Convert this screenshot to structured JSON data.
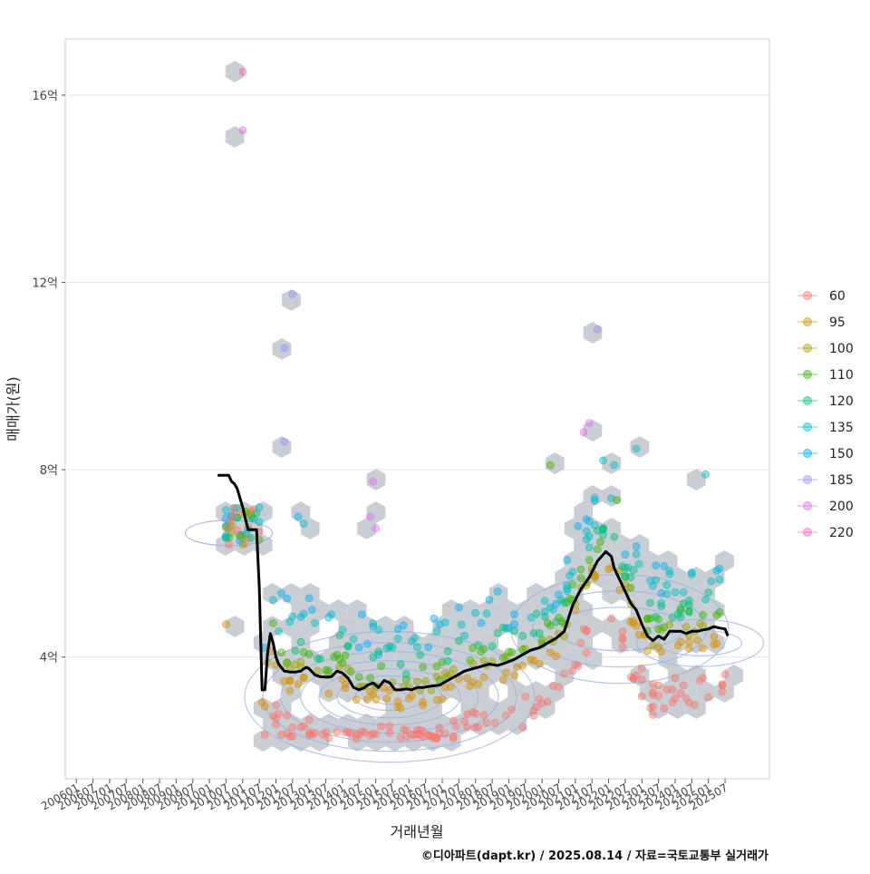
{
  "credit": "©디아파트(dapt.kr) / 2025.08.14 / 자료=국토교통부 실거래가",
  "chart_data": {
    "type": "scatter",
    "title": "",
    "xlabel": "거래년월",
    "ylabel": "매매가(원)",
    "ylim": [
      1.4,
      17.2
    ],
    "xlim": [
      "2005-09",
      "2026-11"
    ],
    "grid": "horizontal",
    "legend_position": "right",
    "yticks": [
      {
        "value": 4,
        "label": "4억"
      },
      {
        "value": 8,
        "label": "8억"
      },
      {
        "value": 12,
        "label": "12억"
      },
      {
        "value": 16,
        "label": "16억"
      }
    ],
    "xtick_labels": [
      "200601",
      "200607",
      "200701",
      "200707",
      "200801",
      "200807",
      "200901",
      "200907",
      "201001",
      "201007",
      "201101",
      "201107",
      "201201",
      "201207",
      "201301",
      "201307",
      "201401",
      "201407",
      "201501",
      "201507",
      "201601",
      "201607",
      "201701",
      "201707",
      "201801",
      "201807",
      "201901",
      "201907",
      "202001",
      "202007",
      "202101",
      "202107",
      "202201",
      "202207",
      "202301",
      "202307",
      "202401",
      "202407",
      "202501",
      "202507"
    ],
    "legend": [
      {
        "label": "60",
        "color": "#F8766D"
      },
      {
        "label": "95",
        "color": "#D89000"
      },
      {
        "label": "100",
        "color": "#A3A500"
      },
      {
        "label": "110",
        "color": "#39B600"
      },
      {
        "label": "120",
        "color": "#00BF7D"
      },
      {
        "label": "135",
        "color": "#00BFC4"
      },
      {
        "label": "150",
        "color": "#00B0F6"
      },
      {
        "label": "185",
        "color": "#9590FF"
      },
      {
        "label": "200",
        "color": "#E76BF3"
      },
      {
        "label": "220",
        "color": "#FF62BC"
      }
    ],
    "trend_line": {
      "x": [
        "2010-04",
        "2010-06",
        "2010-08",
        "2010-09",
        "2010-10",
        "2010-11",
        "2010-12",
        "2011-01",
        "2011-02",
        "2011-03",
        "2011-04",
        "2011-06",
        "2011-07",
        "2011-08",
        "2011-09",
        "2011-10",
        "2011-11",
        "2011-12",
        "2012-01",
        "2012-02",
        "2012-04",
        "2012-06",
        "2012-08",
        "2012-10",
        "2012-11",
        "2012-12",
        "2013-01",
        "2013-03",
        "2013-05",
        "2013-07",
        "2013-09",
        "2013-11",
        "2014-01",
        "2014-03",
        "2014-04",
        "2014-05",
        "2014-07",
        "2014-09",
        "2014-10",
        "2014-12",
        "2015-02",
        "2015-04",
        "2015-06",
        "2015-08",
        "2015-10",
        "2015-12",
        "2016-02",
        "2016-04",
        "2016-06",
        "2016-09",
        "2016-12",
        "2017-03",
        "2017-06",
        "2017-09",
        "2017-12",
        "2018-03",
        "2018-06",
        "2018-09",
        "2018-12",
        "2019-03",
        "2019-06",
        "2019-09",
        "2019-12",
        "2020-03",
        "2020-06",
        "2020-09",
        "2020-12",
        "2021-03",
        "2021-06",
        "2021-09",
        "2021-12",
        "2022-01",
        "2022-02",
        "2022-03",
        "2022-05",
        "2022-07",
        "2022-09",
        "2022-11",
        "2023-01",
        "2023-03",
        "2023-05",
        "2023-07",
        "2023-09",
        "2023-11",
        "2024-01",
        "2024-03",
        "2024-05",
        "2024-07",
        "2024-09",
        "2024-11",
        "2025-01",
        "2025-03",
        "2025-05",
        "2025-07",
        "2025-08"
      ],
      "y": [
        7.88,
        7.88,
        7.88,
        7.75,
        7.7,
        7.6,
        7.4,
        7.2,
        6.95,
        6.72,
        6.72,
        6.72,
        5.5,
        3.3,
        3.3,
        4.1,
        4.5,
        4.3,
        4.0,
        3.85,
        3.7,
        3.68,
        3.68,
        3.7,
        3.75,
        3.78,
        3.75,
        3.62,
        3.58,
        3.57,
        3.58,
        3.7,
        3.66,
        3.55,
        3.45,
        3.35,
        3.3,
        3.35,
        3.4,
        3.45,
        3.35,
        3.5,
        3.45,
        3.3,
        3.3,
        3.32,
        3.3,
        3.35,
        3.35,
        3.38,
        3.4,
        3.5,
        3.6,
        3.7,
        3.75,
        3.8,
        3.85,
        3.82,
        3.88,
        3.95,
        4.05,
        4.15,
        4.2,
        4.3,
        4.4,
        4.55,
        5.1,
        5.45,
        5.7,
        6.05,
        6.25,
        6.2,
        6.15,
        5.9,
        5.65,
        5.4,
        5.15,
        5.0,
        4.7,
        4.45,
        4.35,
        4.45,
        4.38,
        4.55,
        4.55,
        4.55,
        4.5,
        4.55,
        4.55,
        4.58,
        4.6,
        4.65,
        4.62,
        4.6,
        4.45
      ]
    },
    "highlight_points": [
      {
        "x": "2011-01",
        "y": 16.5,
        "series": "220"
      },
      {
        "x": "2011-01",
        "y": 15.25,
        "series": "200"
      },
      {
        "x": "2012-07",
        "y": 11.75,
        "series": "185"
      },
      {
        "x": "2012-04",
        "y": 10.6,
        "series": "185"
      },
      {
        "x": "2012-04",
        "y": 8.6,
        "series": "185"
      },
      {
        "x": "2014-12",
        "y": 7.75,
        "series": "200"
      },
      {
        "x": "2014-11",
        "y": 7.0,
        "series": "200"
      },
      {
        "x": "2015-01",
        "y": 6.75,
        "series": "200"
      },
      {
        "x": "2021-09",
        "y": 11.0,
        "series": "185"
      },
      {
        "x": "2021-06",
        "y": 9.0,
        "series": "200"
      },
      {
        "x": "2021-04",
        "y": 8.8,
        "series": "200"
      },
      {
        "x": "2020-04",
        "y": 8.1,
        "series": "110"
      },
      {
        "x": "2024-12",
        "y": 7.9,
        "series": "135"
      },
      {
        "x": "2022-11",
        "y": 8.45,
        "series": "135"
      },
      {
        "x": "2022-03",
        "y": 8.1,
        "series": "135"
      },
      {
        "x": "2021-11",
        "y": 8.2,
        "series": "135"
      },
      {
        "x": "2022-04",
        "y": 7.35,
        "series": "110"
      },
      {
        "x": "2021-08",
        "y": 7.4,
        "series": "135"
      },
      {
        "x": "2012-09",
        "y": 7.0,
        "series": "150"
      },
      {
        "x": "2012-11",
        "y": 6.85,
        "series": "135"
      },
      {
        "x": "2011-07",
        "y": 7.2,
        "series": "135"
      },
      {
        "x": "2010-07",
        "y": 6.8,
        "series": "135"
      },
      {
        "x": "2010-07",
        "y": 6.6,
        "series": "135"
      },
      {
        "x": "2010-07",
        "y": 4.7,
        "series": "95"
      }
    ]
  }
}
